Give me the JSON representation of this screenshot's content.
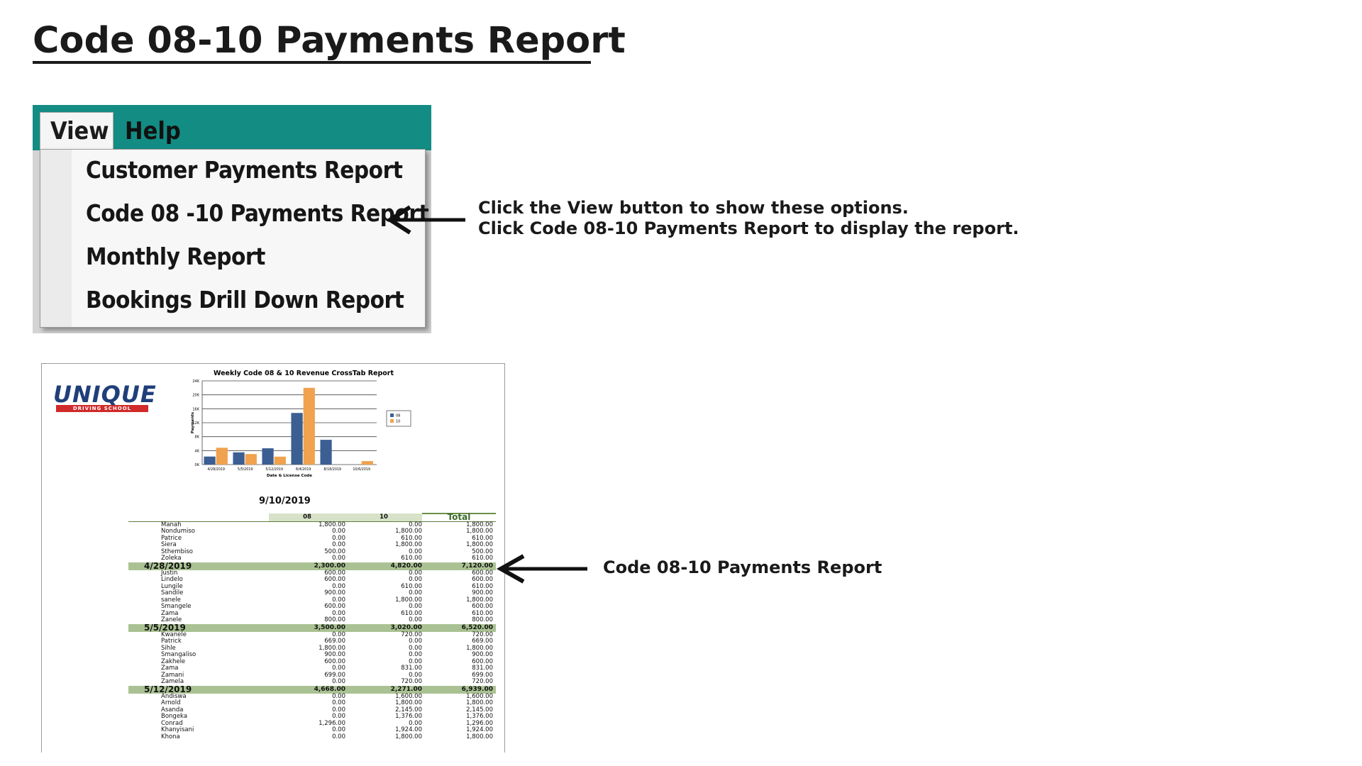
{
  "page": {
    "title": "Code 08-10 Payments Report"
  },
  "menu": {
    "tabs": [
      "View",
      "Help"
    ],
    "items": [
      "Customer Payments Report",
      "Code 08 -10 Payments Report",
      "Monthly Report",
      "Bookings Drill Down Report"
    ],
    "menubar_color": "#138c84"
  },
  "callouts": {
    "menu_line1": "Click the View button to show these options.",
    "menu_line2": "Click Code 08-10 Payments Report to display the report.",
    "report": "Code 08-10 Payments Report"
  },
  "report": {
    "logo": "UNIQUE",
    "logo_sub": "DRIVING SCHOOL",
    "date": "9/10/2019",
    "columns": [
      "08",
      "10",
      "Total"
    ],
    "groups": [
      {
        "rows": [
          [
            "Manah",
            "1,800.00",
            "0.00",
            "1,800.00"
          ],
          [
            "Nondumiso",
            "0.00",
            "1,800.00",
            "1,800.00"
          ],
          [
            "Patrice",
            "0.00",
            "610.00",
            "610.00"
          ],
          [
            "Siera",
            "0.00",
            "1,800.00",
            "1,800.00"
          ],
          [
            "Sthembiso",
            "500.00",
            "0.00",
            "500.00"
          ],
          [
            "Zoleka",
            "0.00",
            "610.00",
            "610.00"
          ]
        ],
        "subtotal": [
          "4/28/2019",
          "2,300.00",
          "4,820.00",
          "7,120.00"
        ]
      },
      {
        "rows": [
          [
            "Justin",
            "600.00",
            "0.00",
            "600.00"
          ],
          [
            "Lindelo",
            "600.00",
            "0.00",
            "600.00"
          ],
          [
            "Lungile",
            "0.00",
            "610.00",
            "610.00"
          ],
          [
            "Sandile",
            "900.00",
            "0.00",
            "900.00"
          ],
          [
            "sanele",
            "0.00",
            "1,800.00",
            "1,800.00"
          ],
          [
            "Smangele",
            "600.00",
            "0.00",
            "600.00"
          ],
          [
            "Zama",
            "0.00",
            "610.00",
            "610.00"
          ],
          [
            "Zanele",
            "800.00",
            "0.00",
            "800.00"
          ]
        ],
        "subtotal": [
          "5/5/2019",
          "3,500.00",
          "3,020.00",
          "6,520.00"
        ]
      },
      {
        "rows": [
          [
            "Kwanele",
            "0.00",
            "720.00",
            "720.00"
          ],
          [
            "Patrick",
            "669.00",
            "0.00",
            "669.00"
          ],
          [
            "Sihle",
            "1,800.00",
            "0.00",
            "1,800.00"
          ],
          [
            "Smangaliso",
            "900.00",
            "0.00",
            "900.00"
          ],
          [
            "Zakhele",
            "600.00",
            "0.00",
            "600.00"
          ],
          [
            "Zama",
            "0.00",
            "831.00",
            "831.00"
          ],
          [
            "Zamani",
            "699.00",
            "0.00",
            "699.00"
          ],
          [
            "Zamela",
            "0.00",
            "720.00",
            "720.00"
          ]
        ],
        "subtotal": [
          "5/12/2019",
          "4,668.00",
          "2,271.00",
          "6,939.00"
        ]
      },
      {
        "rows": [
          [
            "Andiswa",
            "0.00",
            "1,600.00",
            "1,600.00"
          ],
          [
            "Arnold",
            "0.00",
            "1,800.00",
            "1,800.00"
          ],
          [
            "Asanda",
            "0.00",
            "2,145.00",
            "2,145.00"
          ],
          [
            "Bongeka",
            "0.00",
            "1,376.00",
            "1,376.00"
          ],
          [
            "Conrad",
            "1,296.00",
            "0.00",
            "1,296.00"
          ],
          [
            "Khanyisani",
            "0.00",
            "1,924.00",
            "1,924.00"
          ],
          [
            "Khona",
            "0.00",
            "1,800.00",
            "1,800.00"
          ]
        ],
        "subtotal": null
      }
    ]
  },
  "chart_data": {
    "type": "bar",
    "title": "Weekly Code 08 & 10 Revenue CrossTab Report",
    "xlabel": "Date & License Code",
    "ylabel": "Payments",
    "ylim": [
      0,
      24000
    ],
    "yticks": [
      "0K",
      "4K",
      "8K",
      "12K",
      "16K",
      "20K",
      "24K"
    ],
    "categories": [
      "4/28/2019",
      "5/5/2019",
      "5/12/2019",
      "8/4/2019",
      "8/18/2019",
      "10/6/2019"
    ],
    "series": [
      {
        "name": "08",
        "color": "#3b5f93",
        "values": [
          2300,
          3500,
          4668,
          14800,
          7100,
          0
        ]
      },
      {
        "name": "10",
        "color": "#f0a24e",
        "values": [
          4820,
          3020,
          2271,
          22000,
          0,
          1000
        ]
      }
    ],
    "legend": "right",
    "grid": true
  }
}
